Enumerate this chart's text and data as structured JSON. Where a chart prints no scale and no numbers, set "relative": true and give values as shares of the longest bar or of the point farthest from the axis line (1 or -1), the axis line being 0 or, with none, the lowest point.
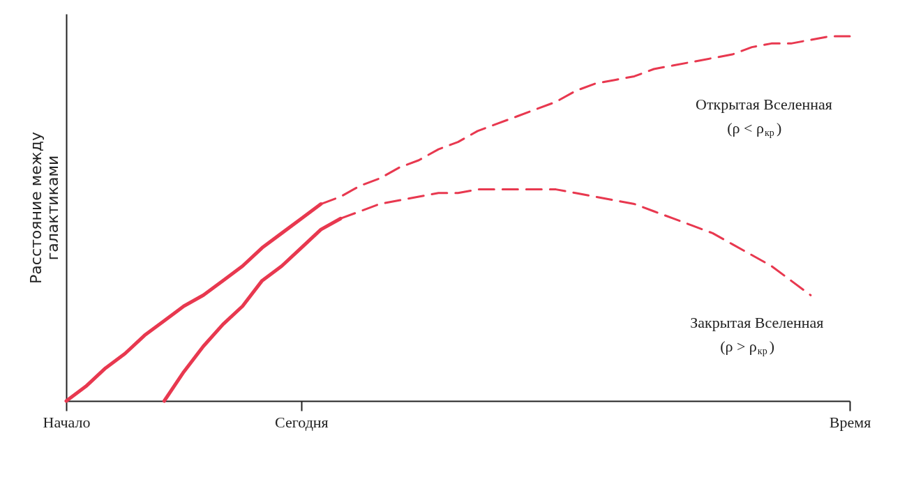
{
  "chart_data": {
    "type": "line",
    "relative": true,
    "ylabel": "Расстояние между\nгалактиками",
    "categories": [
      "Начало",
      null,
      null,
      null,
      null,
      null,
      null,
      null,
      null,
      null,
      null,
      null,
      "Сегодня",
      null,
      null,
      null,
      null,
      null,
      null,
      null,
      null,
      null,
      null,
      null,
      null,
      null,
      null,
      null,
      null,
      null,
      null,
      null,
      null,
      null,
      null,
      null,
      null,
      null,
      null,
      null,
      "Время"
    ],
    "series": [
      {
        "color": "#e8384f",
        "line_style": "solid",
        "values": [
          0,
          0.04,
          0.09,
          0.13,
          0.18,
          0.22,
          0.26,
          0.29,
          0.33,
          0.37,
          0.42,
          0.46,
          0.5,
          0.54,
          null,
          null,
          null,
          null,
          null,
          null,
          null,
          null,
          null,
          null,
          null,
          null,
          null,
          null,
          null,
          null,
          null,
          null,
          null,
          null,
          null,
          null,
          null,
          null,
          null,
          null,
          null
        ]
      },
      {
        "name": "Открытая Вселенная\n(ρ < ρ$_{кр}$)",
        "color": "#e8384f",
        "line_style": "dashed",
        "values": [
          null,
          null,
          null,
          null,
          null,
          null,
          null,
          null,
          null,
          null,
          null,
          null,
          null,
          0.54,
          0.56,
          0.59,
          0.61,
          0.64,
          0.66,
          0.69,
          0.71,
          0.74,
          0.76,
          0.78,
          0.8,
          0.82,
          0.85,
          0.87,
          0.88,
          0.89,
          0.91,
          0.92,
          0.93,
          0.94,
          0.95,
          0.97,
          0.98,
          0.98,
          0.99,
          1.0,
          1.0
        ]
      },
      {
        "color": "#e8384f",
        "line_style": "solid",
        "values": [
          null,
          null,
          null,
          null,
          null,
          0,
          0.08,
          0.15,
          0.21,
          0.26,
          0.33,
          0.37,
          0.42,
          0.47,
          0.5,
          null,
          null,
          null,
          null,
          null,
          null,
          null,
          null,
          null,
          null,
          null,
          null,
          null,
          null,
          null,
          null,
          null,
          null,
          null,
          null,
          null,
          null,
          null,
          null,
          null,
          null
        ]
      },
      {
        "name": "Закрытая Вселенная\n(ρ > ρ$_{кр}$)",
        "color": "#e8384f",
        "line_style": "dashed",
        "values": [
          null,
          null,
          null,
          null,
          null,
          null,
          null,
          null,
          null,
          null,
          null,
          null,
          null,
          null,
          0.5,
          0.52,
          0.54,
          0.55,
          0.56,
          0.57,
          0.57,
          0.58,
          0.58,
          0.58,
          0.58,
          0.58,
          0.57,
          0.56,
          0.55,
          0.54,
          0.52,
          0.5,
          0.48,
          0.46,
          0.43,
          0.4,
          0.37,
          0.33,
          0.29,
          null,
          null
        ]
      }
    ],
    "grid": false,
    "marker": "none"
  }
}
